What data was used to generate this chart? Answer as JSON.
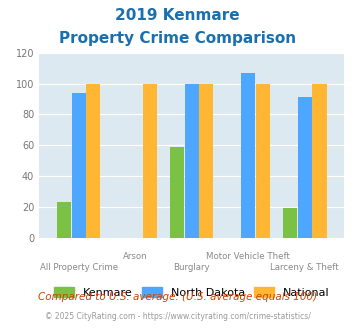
{
  "title_line1": "2019 Kenmare",
  "title_line2": "Property Crime Comparison",
  "categories": [
    "All Property Crime",
    "Arson",
    "Burglary",
    "Motor Vehicle Theft",
    "Larceny & Theft"
  ],
  "kenmare": [
    23,
    0,
    59,
    0,
    19
  ],
  "north_dakota": [
    94,
    0,
    100,
    107,
    91
  ],
  "national": [
    100,
    100,
    100,
    100,
    100
  ],
  "kenmare_color": "#7bc143",
  "nd_color": "#4da6ff",
  "national_color": "#ffb733",
  "bg_color": "#dce9f0",
  "title_color": "#1a6faf",
  "tick_color": "#aaaaaa",
  "xlabel_color": "#888888",
  "ylim": [
    0,
    120
  ],
  "yticks": [
    0,
    20,
    40,
    60,
    80,
    100,
    120
  ],
  "top_labels": {
    "1": "Arson",
    "3": "Motor Vehicle Theft"
  },
  "bot_labels": {
    "0": "All Property Crime",
    "2": "Burglary",
    "4": "Larceny & Theft"
  },
  "footer_text": "Compared to U.S. average. (U.S. average equals 100)",
  "copyright_text": "© 2025 CityRating.com - https://www.cityrating.com/crime-statistics/",
  "legend_labels": [
    "Kenmare",
    "North Dakota",
    "National"
  ]
}
